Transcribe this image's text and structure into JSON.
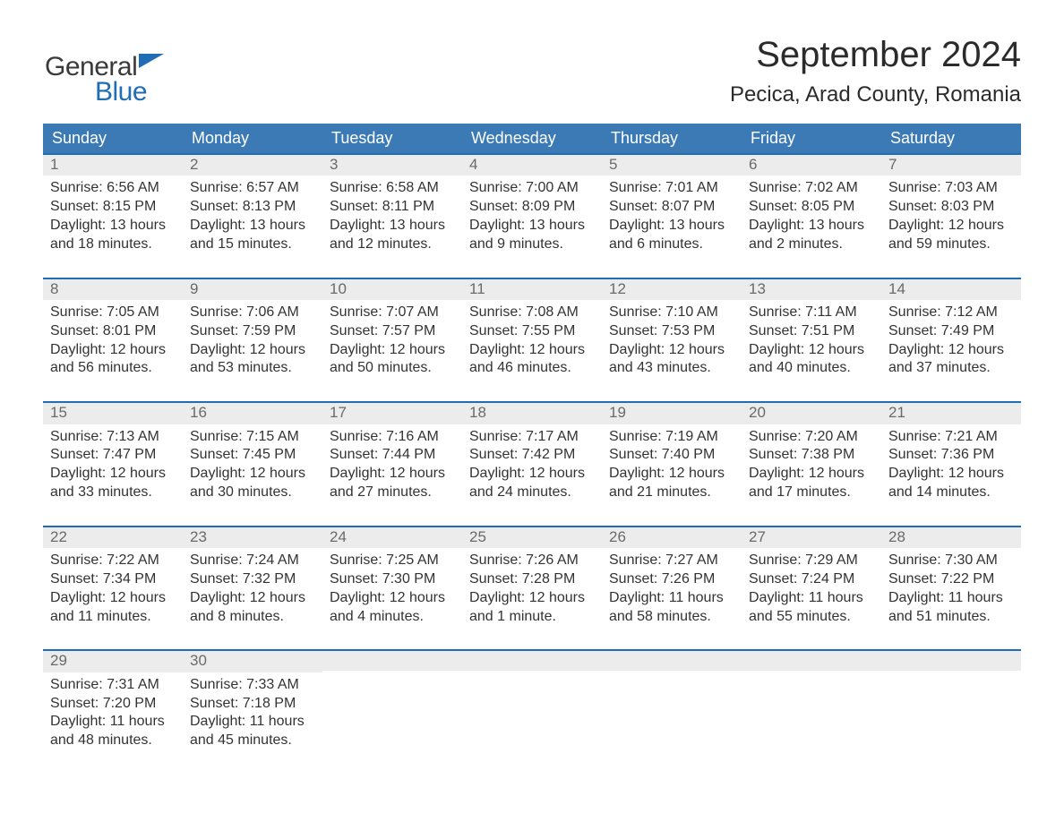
{
  "brand": {
    "part1": "General",
    "part2": "Blue"
  },
  "title": "September 2024",
  "location": "Pecica, Arad County, Romania",
  "colors": {
    "header_blue": "#3c7ab5",
    "accent_blue": "#1f6db4",
    "row_band": "#ececec",
    "text_dark": "#333333",
    "text_muted": "#6a6a6a",
    "page_bg": "#ffffff"
  },
  "weekdays": [
    "Sunday",
    "Monday",
    "Tuesday",
    "Wednesday",
    "Thursday",
    "Friday",
    "Saturday"
  ],
  "weeks": [
    [
      {
        "n": "1",
        "sr": "Sunrise: 6:56 AM",
        "ss": "Sunset: 8:15 PM",
        "d1": "Daylight: 13 hours",
        "d2": "and 18 minutes."
      },
      {
        "n": "2",
        "sr": "Sunrise: 6:57 AM",
        "ss": "Sunset: 8:13 PM",
        "d1": "Daylight: 13 hours",
        "d2": "and 15 minutes."
      },
      {
        "n": "3",
        "sr": "Sunrise: 6:58 AM",
        "ss": "Sunset: 8:11 PM",
        "d1": "Daylight: 13 hours",
        "d2": "and 12 minutes."
      },
      {
        "n": "4",
        "sr": "Sunrise: 7:00 AM",
        "ss": "Sunset: 8:09 PM",
        "d1": "Daylight: 13 hours",
        "d2": "and 9 minutes."
      },
      {
        "n": "5",
        "sr": "Sunrise: 7:01 AM",
        "ss": "Sunset: 8:07 PM",
        "d1": "Daylight: 13 hours",
        "d2": "and 6 minutes."
      },
      {
        "n": "6",
        "sr": "Sunrise: 7:02 AM",
        "ss": "Sunset: 8:05 PM",
        "d1": "Daylight: 13 hours",
        "d2": "and 2 minutes."
      },
      {
        "n": "7",
        "sr": "Sunrise: 7:03 AM",
        "ss": "Sunset: 8:03 PM",
        "d1": "Daylight: 12 hours",
        "d2": "and 59 minutes."
      }
    ],
    [
      {
        "n": "8",
        "sr": "Sunrise: 7:05 AM",
        "ss": "Sunset: 8:01 PM",
        "d1": "Daylight: 12 hours",
        "d2": "and 56 minutes."
      },
      {
        "n": "9",
        "sr": "Sunrise: 7:06 AM",
        "ss": "Sunset: 7:59 PM",
        "d1": "Daylight: 12 hours",
        "d2": "and 53 minutes."
      },
      {
        "n": "10",
        "sr": "Sunrise: 7:07 AM",
        "ss": "Sunset: 7:57 PM",
        "d1": "Daylight: 12 hours",
        "d2": "and 50 minutes."
      },
      {
        "n": "11",
        "sr": "Sunrise: 7:08 AM",
        "ss": "Sunset: 7:55 PM",
        "d1": "Daylight: 12 hours",
        "d2": "and 46 minutes."
      },
      {
        "n": "12",
        "sr": "Sunrise: 7:10 AM",
        "ss": "Sunset: 7:53 PM",
        "d1": "Daylight: 12 hours",
        "d2": "and 43 minutes."
      },
      {
        "n": "13",
        "sr": "Sunrise: 7:11 AM",
        "ss": "Sunset: 7:51 PM",
        "d1": "Daylight: 12 hours",
        "d2": "and 40 minutes."
      },
      {
        "n": "14",
        "sr": "Sunrise: 7:12 AM",
        "ss": "Sunset: 7:49 PM",
        "d1": "Daylight: 12 hours",
        "d2": "and 37 minutes."
      }
    ],
    [
      {
        "n": "15",
        "sr": "Sunrise: 7:13 AM",
        "ss": "Sunset: 7:47 PM",
        "d1": "Daylight: 12 hours",
        "d2": "and 33 minutes."
      },
      {
        "n": "16",
        "sr": "Sunrise: 7:15 AM",
        "ss": "Sunset: 7:45 PM",
        "d1": "Daylight: 12 hours",
        "d2": "and 30 minutes."
      },
      {
        "n": "17",
        "sr": "Sunrise: 7:16 AM",
        "ss": "Sunset: 7:44 PM",
        "d1": "Daylight: 12 hours",
        "d2": "and 27 minutes."
      },
      {
        "n": "18",
        "sr": "Sunrise: 7:17 AM",
        "ss": "Sunset: 7:42 PM",
        "d1": "Daylight: 12 hours",
        "d2": "and 24 minutes."
      },
      {
        "n": "19",
        "sr": "Sunrise: 7:19 AM",
        "ss": "Sunset: 7:40 PM",
        "d1": "Daylight: 12 hours",
        "d2": "and 21 minutes."
      },
      {
        "n": "20",
        "sr": "Sunrise: 7:20 AM",
        "ss": "Sunset: 7:38 PM",
        "d1": "Daylight: 12 hours",
        "d2": "and 17 minutes."
      },
      {
        "n": "21",
        "sr": "Sunrise: 7:21 AM",
        "ss": "Sunset: 7:36 PM",
        "d1": "Daylight: 12 hours",
        "d2": "and 14 minutes."
      }
    ],
    [
      {
        "n": "22",
        "sr": "Sunrise: 7:22 AM",
        "ss": "Sunset: 7:34 PM",
        "d1": "Daylight: 12 hours",
        "d2": "and 11 minutes."
      },
      {
        "n": "23",
        "sr": "Sunrise: 7:24 AM",
        "ss": "Sunset: 7:32 PM",
        "d1": "Daylight: 12 hours",
        "d2": "and 8 minutes."
      },
      {
        "n": "24",
        "sr": "Sunrise: 7:25 AM",
        "ss": "Sunset: 7:30 PM",
        "d1": "Daylight: 12 hours",
        "d2": "and 4 minutes."
      },
      {
        "n": "25",
        "sr": "Sunrise: 7:26 AM",
        "ss": "Sunset: 7:28 PM",
        "d1": "Daylight: 12 hours",
        "d2": "and 1 minute."
      },
      {
        "n": "26",
        "sr": "Sunrise: 7:27 AM",
        "ss": "Sunset: 7:26 PM",
        "d1": "Daylight: 11 hours",
        "d2": "and 58 minutes."
      },
      {
        "n": "27",
        "sr": "Sunrise: 7:29 AM",
        "ss": "Sunset: 7:24 PM",
        "d1": "Daylight: 11 hours",
        "d2": "and 55 minutes."
      },
      {
        "n": "28",
        "sr": "Sunrise: 7:30 AM",
        "ss": "Sunset: 7:22 PM",
        "d1": "Daylight: 11 hours",
        "d2": "and 51 minutes."
      }
    ],
    [
      {
        "n": "29",
        "sr": "Sunrise: 7:31 AM",
        "ss": "Sunset: 7:20 PM",
        "d1": "Daylight: 11 hours",
        "d2": "and 48 minutes."
      },
      {
        "n": "30",
        "sr": "Sunrise: 7:33 AM",
        "ss": "Sunset: 7:18 PM",
        "d1": "Daylight: 11 hours",
        "d2": "and 45 minutes."
      },
      {
        "n": "",
        "sr": "",
        "ss": "",
        "d1": "",
        "d2": ""
      },
      {
        "n": "",
        "sr": "",
        "ss": "",
        "d1": "",
        "d2": ""
      },
      {
        "n": "",
        "sr": "",
        "ss": "",
        "d1": "",
        "d2": ""
      },
      {
        "n": "",
        "sr": "",
        "ss": "",
        "d1": "",
        "d2": ""
      },
      {
        "n": "",
        "sr": "",
        "ss": "",
        "d1": "",
        "d2": ""
      }
    ]
  ]
}
